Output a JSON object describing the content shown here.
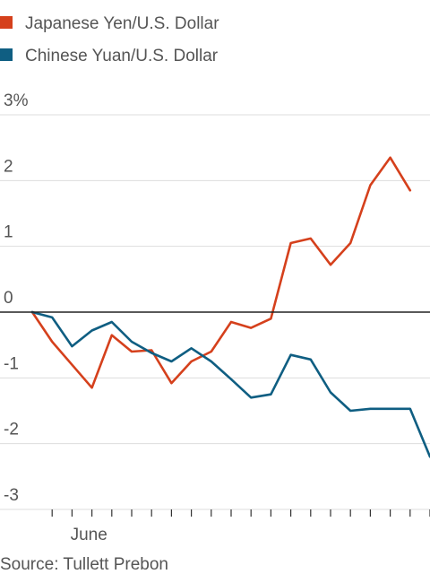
{
  "chart_data": {
    "type": "line",
    "ylim": [
      -3,
      3
    ],
    "y_ticks": [
      {
        "value": 3,
        "label": "3%"
      },
      {
        "value": 2,
        "label": "2"
      },
      {
        "value": 1,
        "label": "1"
      },
      {
        "value": 0,
        "label": "0"
      },
      {
        "value": -1,
        "label": "-1"
      },
      {
        "value": -2,
        "label": "-2"
      },
      {
        "value": -3,
        "label": "-3"
      }
    ],
    "x_labels": [
      {
        "index": 3,
        "label": "June"
      }
    ],
    "x_tick_indices": [
      1,
      2,
      3,
      4,
      5,
      6,
      7,
      8,
      9,
      10,
      11,
      12,
      13,
      14,
      15,
      16,
      17,
      18,
      19,
      20
    ],
    "grid": true,
    "legend_position": "top-left",
    "series": [
      {
        "name": "Japanese Yen/U.S. Dollar",
        "color": "#d5401c",
        "values": [
          0,
          -0.45,
          -0.8,
          -1.15,
          -0.35,
          -0.6,
          -0.58,
          -1.08,
          -0.75,
          -0.6,
          -0.15,
          -0.24,
          -0.1,
          1.05,
          1.12,
          0.72,
          1.05,
          1.93,
          2.35,
          1.85
        ]
      },
      {
        "name": "Chinese Yuan/U.S. Dollar",
        "color": "#0f5e82",
        "values": [
          0,
          -0.08,
          -0.52,
          -0.28,
          -0.15,
          -0.45,
          -0.62,
          -0.75,
          -0.55,
          -0.75,
          -1.02,
          -1.3,
          -1.25,
          -0.65,
          -0.72,
          -1.22,
          -1.5,
          -1.47,
          -1.47,
          -1.47,
          -2.2
        ]
      }
    ]
  },
  "source": "Source: Tullett Prebon"
}
